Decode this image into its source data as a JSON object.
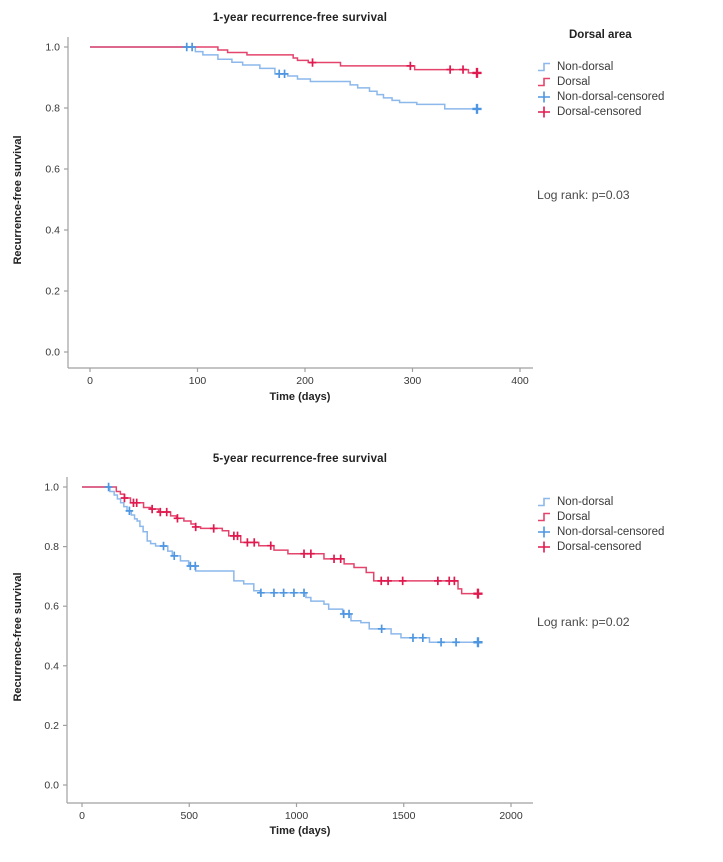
{
  "page": {
    "background": "#ffffff"
  },
  "chart_data": [
    {
      "type": "line",
      "subtype": "kaplan-meier-step",
      "title": "1-year recurrence-free survival",
      "xlabel": "Time (days)",
      "ylabel": "Recurrence-free survival",
      "annotation": "Log rank: p=0.03",
      "legend_title": "Dorsal area",
      "legend_position": "right",
      "grid": false,
      "xlim": [
        0,
        400
      ],
      "ylim": [
        0.0,
        1.0
      ],
      "xticks": [
        {
          "label": "0",
          "value": 0
        },
        {
          "label": "100",
          "value": 100
        },
        {
          "label": "200",
          "value": 200
        },
        {
          "label": "300",
          "value": 300
        },
        {
          "label": "400",
          "value": 400
        }
      ],
      "yticks": [
        {
          "label": "1.0",
          "value": 1.0
        },
        {
          "label": "0.8",
          "value": 0.8
        },
        {
          "label": "0.6",
          "value": 0.6
        },
        {
          "label": "0.4",
          "value": 0.4
        },
        {
          "label": "0.2",
          "value": 0.2
        },
        {
          "label": "0.0",
          "value": 0.0
        }
      ],
      "legend_entries": [
        "Non-dorsal",
        "Dorsal",
        "Non-dorsal-censored",
        "Dorsal-censored"
      ],
      "series": [
        {
          "name": "Non-dorsal",
          "color": "#8CB8EB",
          "censor_color": "#4E96E1",
          "steps": [
            [
              0,
              1.0
            ],
            [
              98,
              0.985
            ],
            [
              105,
              0.974
            ],
            [
              119,
              0.96
            ],
            [
              132,
              0.95
            ],
            [
              142,
              0.941
            ],
            [
              158,
              0.93
            ],
            [
              172,
              0.912
            ],
            [
              184,
              0.905
            ],
            [
              193,
              0.895
            ],
            [
              205,
              0.887
            ],
            [
              242,
              0.876
            ],
            [
              249,
              0.866
            ],
            [
              260,
              0.855
            ],
            [
              267,
              0.844
            ],
            [
              273,
              0.833
            ],
            [
              281,
              0.825
            ],
            [
              288,
              0.818
            ],
            [
              304,
              0.812
            ],
            [
              330,
              0.797
            ],
            [
              363,
              0.797
            ]
          ],
          "censored": [
            [
              90,
              1.0
            ],
            [
              95,
              1.0
            ],
            [
              176,
              0.912
            ],
            [
              181,
              0.912
            ],
            [
              360,
              0.797,
              "bold"
            ]
          ]
        },
        {
          "name": "Dorsal",
          "color": "#E4436B",
          "censor_color": "#E0194E",
          "steps": [
            [
              0,
              1.0
            ],
            [
              119,
              0.99
            ],
            [
              128,
              0.982
            ],
            [
              146,
              0.974
            ],
            [
              189,
              0.964
            ],
            [
              193,
              0.956
            ],
            [
              203,
              0.949
            ],
            [
              233,
              0.938
            ],
            [
              302,
              0.926
            ],
            [
              352,
              0.915
            ],
            [
              363,
              0.915
            ]
          ],
          "censored": [
            [
              207,
              0.949
            ],
            [
              298,
              0.938
            ],
            [
              335,
              0.926
            ],
            [
              347,
              0.926
            ],
            [
              360,
              0.915,
              "bold"
            ]
          ]
        }
      ]
    },
    {
      "type": "line",
      "subtype": "kaplan-meier-step",
      "title": "5-year recurrence-free survival",
      "xlabel": "Time (days)",
      "ylabel": "Recurrence-free survival",
      "annotation": "Log rank: p=0.02",
      "legend_position": "right",
      "grid": false,
      "xlim": [
        0,
        2000
      ],
      "ylim": [
        0.0,
        1.0
      ],
      "xticks": [
        {
          "label": "0",
          "value": 0
        },
        {
          "label": "500",
          "value": 500
        },
        {
          "label": "1000",
          "value": 1000
        },
        {
          "label": "1500",
          "value": 1500
        },
        {
          "label": "2000",
          "value": 2000
        }
      ],
      "yticks": [
        {
          "label": "1.0",
          "value": 1.0
        },
        {
          "label": "0.8",
          "value": 0.8
        },
        {
          "label": "0.6",
          "value": 0.6
        },
        {
          "label": "0.4",
          "value": 0.4
        },
        {
          "label": "0.2",
          "value": 0.2
        },
        {
          "label": "0.0",
          "value": 0.0
        }
      ],
      "legend_entries": [
        "Non-dorsal",
        "Dorsal",
        "Non-dorsal-censored",
        "Dorsal-censored"
      ],
      "series": [
        {
          "name": "Non-dorsal",
          "color": "#8CB8EB",
          "censor_color": "#4E96E1",
          "steps": [
            [
              0,
              1.0
            ],
            [
              130,
              0.985
            ],
            [
              150,
              0.973
            ],
            [
              165,
              0.96
            ],
            [
              180,
              0.947
            ],
            [
              195,
              0.934
            ],
            [
              210,
              0.92
            ],
            [
              230,
              0.906
            ],
            [
              245,
              0.893
            ],
            [
              257,
              0.886
            ],
            [
              270,
              0.868
            ],
            [
              285,
              0.85
            ],
            [
              304,
              0.819
            ],
            [
              320,
              0.81
            ],
            [
              343,
              0.802
            ],
            [
              400,
              0.785
            ],
            [
              421,
              0.769
            ],
            [
              459,
              0.752
            ],
            [
              497,
              0.735
            ],
            [
              530,
              0.718
            ],
            [
              708,
              0.685
            ],
            [
              754,
              0.675
            ],
            [
              801,
              0.652
            ],
            [
              830,
              0.645
            ],
            [
              1044,
              0.629
            ],
            [
              1067,
              0.617
            ],
            [
              1128,
              0.607
            ],
            [
              1150,
              0.59
            ],
            [
              1215,
              0.574
            ],
            [
              1254,
              0.551
            ],
            [
              1300,
              0.545
            ],
            [
              1339,
              0.524
            ],
            [
              1441,
              0.507
            ],
            [
              1487,
              0.494
            ],
            [
              1620,
              0.479
            ],
            [
              1862,
              0.479
            ]
          ],
          "censored": [
            [
              124,
              1.0
            ],
            [
              221,
              0.92
            ],
            [
              380,
              0.802
            ],
            [
              430,
              0.769
            ],
            [
              505,
              0.735
            ],
            [
              528,
              0.735
            ],
            [
              834,
              0.645
            ],
            [
              895,
              0.645
            ],
            [
              940,
              0.645
            ],
            [
              988,
              0.645
            ],
            [
              1035,
              0.645
            ],
            [
              1220,
              0.574
            ],
            [
              1245,
              0.574
            ],
            [
              1397,
              0.524
            ],
            [
              1543,
              0.494
            ],
            [
              1589,
              0.494
            ],
            [
              1674,
              0.479
            ],
            [
              1744,
              0.479
            ],
            [
              1846,
              0.479,
              "bold"
            ]
          ]
        },
        {
          "name": "Dorsal",
          "color": "#E4436B",
          "censor_color": "#E0194E",
          "steps": [
            [
              0,
              1.0
            ],
            [
              160,
              0.985
            ],
            [
              179,
              0.976
            ],
            [
              198,
              0.963
            ],
            [
              226,
              0.947
            ],
            [
              287,
              0.931
            ],
            [
              320,
              0.926
            ],
            [
              357,
              0.916
            ],
            [
              413,
              0.903
            ],
            [
              440,
              0.895
            ],
            [
              475,
              0.886
            ],
            [
              508,
              0.876
            ],
            [
              530,
              0.866
            ],
            [
              553,
              0.861
            ],
            [
              654,
              0.853
            ],
            [
              684,
              0.836
            ],
            [
              740,
              0.814
            ],
            [
              824,
              0.803
            ],
            [
              895,
              0.788
            ],
            [
              960,
              0.776
            ],
            [
              1128,
              0.759
            ],
            [
              1222,
              0.742
            ],
            [
              1268,
              0.73
            ],
            [
              1325,
              0.713
            ],
            [
              1360,
              0.685
            ],
            [
              1753,
              0.658
            ],
            [
              1770,
              0.642
            ],
            [
              1862,
              0.642
            ]
          ],
          "censored": [
            [
              198,
              0.963
            ],
            [
              240,
              0.947
            ],
            [
              255,
              0.947
            ],
            [
              327,
              0.926
            ],
            [
              365,
              0.916
            ],
            [
              395,
              0.916
            ],
            [
              445,
              0.895
            ],
            [
              530,
              0.866
            ],
            [
              614,
              0.861
            ],
            [
              708,
              0.836
            ],
            [
              725,
              0.836
            ],
            [
              771,
              0.814
            ],
            [
              803,
              0.814
            ],
            [
              880,
              0.803
            ],
            [
              1035,
              0.776
            ],
            [
              1067,
              0.776
            ],
            [
              1175,
              0.759
            ],
            [
              1206,
              0.759
            ],
            [
              1395,
              0.685
            ],
            [
              1427,
              0.685
            ],
            [
              1495,
              0.685
            ],
            [
              1659,
              0.685
            ],
            [
              1712,
              0.685
            ],
            [
              1736,
              0.685
            ],
            [
              1846,
              0.642,
              "bold"
            ]
          ]
        }
      ]
    }
  ],
  "style": {
    "axis_color": "#A0A0A0",
    "tick_text_color": "#383838"
  }
}
